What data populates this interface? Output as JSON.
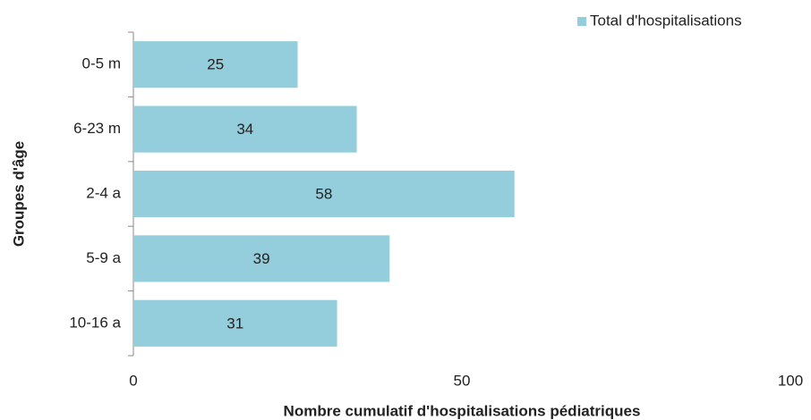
{
  "chart_data": {
    "type": "bar",
    "orientation": "horizontal",
    "x_label": "Nombre cumulatif d'hospitalisations pédiatriques",
    "y_label": "Groupes d'âge",
    "categories": [
      "0-5 m",
      "6-23 m",
      "2-4 a",
      "5-9 a",
      "10-16 a"
    ],
    "series": [
      {
        "name": "Total d'hospitalisations",
        "color": "#94cddb",
        "values": [
          25,
          34,
          58,
          39,
          31
        ]
      }
    ],
    "xlim": [
      0,
      100
    ],
    "xticks": [
      0,
      50,
      100
    ],
    "grid": false,
    "legend": "top-right"
  }
}
